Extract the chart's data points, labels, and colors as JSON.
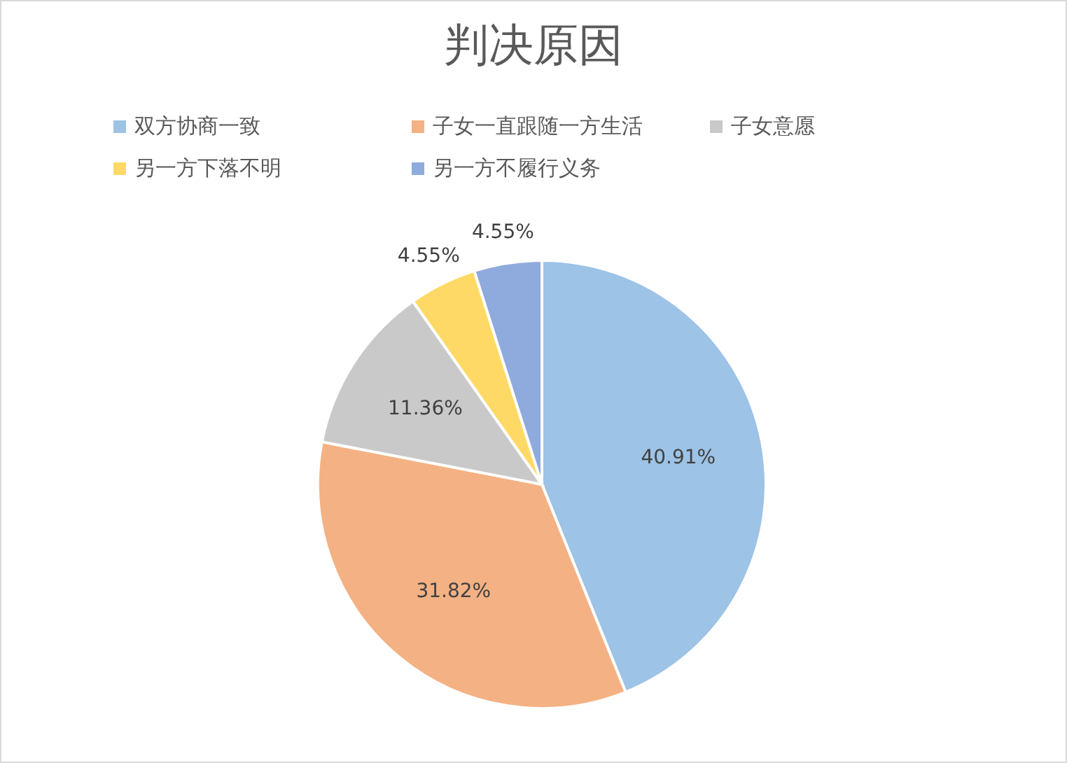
{
  "chart_data": {
    "type": "pie",
    "title": "判决原因",
    "categories": [
      "双方协商一致",
      "子女一直跟随一方生活",
      "子女意愿",
      "另一方下落不明",
      "另一方不履行义务"
    ],
    "values": [
      40.91,
      31.82,
      11.36,
      4.55,
      4.55
    ],
    "colors": [
      "#9dc3e6",
      "#f4b183",
      "#c9c9c9",
      "#ffd966",
      "#8faadc"
    ],
    "value_labels": [
      "40.91%",
      "31.82%",
      "11.36%",
      "4.55%",
      "4.55%"
    ],
    "legend": "top"
  }
}
